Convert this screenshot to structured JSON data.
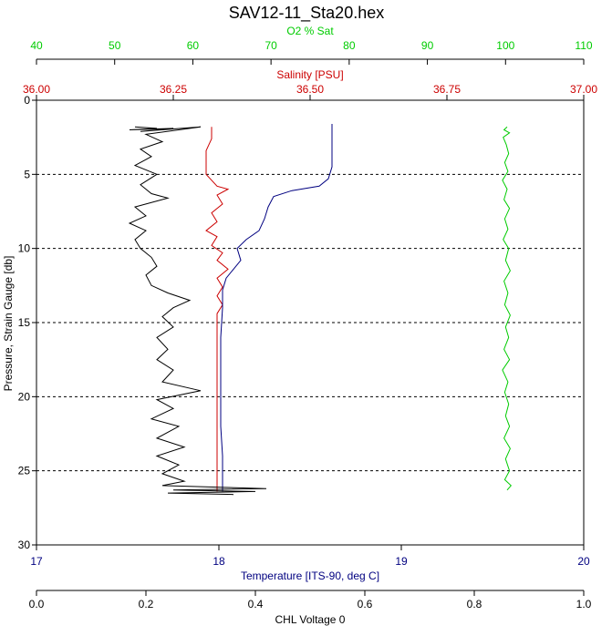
{
  "chart_data": {
    "type": "line",
    "title": "SAV12-11_Sta20.hex",
    "grid": {
      "horizontal_dashed": true,
      "vertical": false
    },
    "colors": {
      "oxygen": "#00cc00",
      "salinity": "#cc0000",
      "temperature": "#000080",
      "chl": "#000000",
      "axis": "#000000"
    },
    "axes": {
      "oxygen": {
        "label": "O2 % Sat",
        "range": [
          40,
          110
        ],
        "ticks": [
          "40",
          "50",
          "60",
          "70",
          "80",
          "90",
          "100",
          "110"
        ]
      },
      "salinity": {
        "label": "Salinity [PSU]",
        "range": [
          36.0,
          37.0
        ],
        "ticks": [
          "36.00",
          "36.25",
          "36.50",
          "36.75",
          "37.00"
        ]
      },
      "temperature": {
        "label": "Temperature [ITS-90, deg C]",
        "range": [
          17,
          20
        ],
        "ticks": [
          "17",
          "18",
          "19",
          "20"
        ]
      },
      "chl": {
        "label": "CHL Voltage 0",
        "range": [
          0.0,
          1.0
        ],
        "ticks": [
          "0.0",
          "0.2",
          "0.4",
          "0.6",
          "0.8",
          "1.0"
        ]
      },
      "pressure": {
        "label": "Pressure, Strain Gauge [db]",
        "range": [
          0,
          30
        ],
        "inverted": true,
        "ticks": [
          "0",
          "5",
          "10",
          "15",
          "20",
          "25",
          "30"
        ]
      }
    },
    "series": [
      {
        "name": "O2 % Sat",
        "axis": "oxygen",
        "points": [
          [
            100.2,
            1.8
          ],
          [
            99.8,
            2.0
          ],
          [
            100.5,
            2.2
          ],
          [
            99.7,
            2.5
          ],
          [
            100.1,
            3.0
          ],
          [
            100.4,
            3.6
          ],
          [
            99.9,
            4.2
          ],
          [
            100.3,
            4.8
          ],
          [
            99.6,
            5.4
          ],
          [
            100.2,
            6.0
          ],
          [
            99.8,
            6.7
          ],
          [
            100.5,
            7.3
          ],
          [
            99.9,
            8.0
          ],
          [
            100.3,
            8.7
          ],
          [
            99.7,
            9.4
          ],
          [
            100.4,
            10.0
          ],
          [
            100.0,
            10.8
          ],
          [
            100.6,
            11.5
          ],
          [
            99.8,
            12.2
          ],
          [
            100.3,
            13.0
          ],
          [
            99.9,
            13.8
          ],
          [
            100.6,
            14.5
          ],
          [
            100.0,
            15.3
          ],
          [
            100.4,
            16.0
          ],
          [
            99.8,
            16.8
          ],
          [
            100.5,
            17.5
          ],
          [
            99.6,
            18.2
          ],
          [
            100.3,
            19.0
          ],
          [
            99.9,
            19.7
          ],
          [
            100.4,
            20.5
          ],
          [
            100.0,
            21.3
          ],
          [
            100.5,
            22.0
          ],
          [
            99.8,
            22.8
          ],
          [
            100.6,
            23.5
          ],
          [
            100.0,
            24.2
          ],
          [
            100.5,
            25.0
          ],
          [
            99.9,
            25.6
          ],
          [
            100.7,
            26.0
          ],
          [
            100.2,
            26.3
          ]
        ]
      },
      {
        "name": "Salinity [PSU]",
        "axis": "salinity",
        "points": [
          [
            36.32,
            1.8
          ],
          [
            36.32,
            2.6
          ],
          [
            36.31,
            3.4
          ],
          [
            36.31,
            4.2
          ],
          [
            36.31,
            5.0
          ],
          [
            36.32,
            5.4
          ],
          [
            36.33,
            5.8
          ],
          [
            36.35,
            6.0
          ],
          [
            36.33,
            6.4
          ],
          [
            36.34,
            7.0
          ],
          [
            36.32,
            7.6
          ],
          [
            36.33,
            8.2
          ],
          [
            36.31,
            8.8
          ],
          [
            36.33,
            9.2
          ],
          [
            36.32,
            9.8
          ],
          [
            36.34,
            10.3
          ],
          [
            36.33,
            10.8
          ],
          [
            36.35,
            11.4
          ],
          [
            36.33,
            12.0
          ],
          [
            36.34,
            12.6
          ],
          [
            36.33,
            13.2
          ],
          [
            36.34,
            13.8
          ],
          [
            36.33,
            14.4
          ],
          [
            36.33,
            15.0
          ],
          [
            36.33,
            16.0
          ],
          [
            36.33,
            17.0
          ],
          [
            36.33,
            18.0
          ],
          [
            36.33,
            19.0
          ],
          [
            36.33,
            20.0
          ],
          [
            36.33,
            21.0
          ],
          [
            36.33,
            22.0
          ],
          [
            36.33,
            23.0
          ],
          [
            36.33,
            24.0
          ],
          [
            36.33,
            25.0
          ],
          [
            36.33,
            26.0
          ],
          [
            36.33,
            26.4
          ]
        ]
      },
      {
        "name": "Temperature [ITS-90, deg C]",
        "axis": "temperature",
        "points": [
          [
            18.62,
            1.6
          ],
          [
            18.62,
            3.0
          ],
          [
            18.62,
            4.5
          ],
          [
            18.6,
            5.3
          ],
          [
            18.55,
            5.8
          ],
          [
            18.4,
            6.1
          ],
          [
            18.3,
            6.5
          ],
          [
            18.27,
            7.2
          ],
          [
            18.25,
            8.0
          ],
          [
            18.22,
            8.8
          ],
          [
            18.15,
            9.4
          ],
          [
            18.1,
            10.0
          ],
          [
            18.12,
            10.8
          ],
          [
            18.08,
            11.4
          ],
          [
            18.04,
            12.0
          ],
          [
            18.02,
            12.8
          ],
          [
            18.02,
            14.0
          ],
          [
            18.01,
            16.0
          ],
          [
            18.01,
            18.0
          ],
          [
            18.01,
            20.0
          ],
          [
            18.01,
            22.0
          ],
          [
            18.02,
            24.0
          ],
          [
            18.02,
            26.0
          ],
          [
            18.02,
            26.4
          ]
        ]
      },
      {
        "name": "CHL Voltage 0",
        "axis": "chl",
        "points": [
          [
            0.18,
            1.8
          ],
          [
            0.22,
            1.9
          ],
          [
            0.17,
            2.0
          ],
          [
            0.25,
            1.9
          ],
          [
            0.19,
            2.1
          ],
          [
            0.3,
            1.8
          ],
          [
            0.2,
            2.3
          ],
          [
            0.23,
            2.8
          ],
          [
            0.19,
            3.3
          ],
          [
            0.21,
            3.8
          ],
          [
            0.18,
            4.4
          ],
          [
            0.22,
            5.0
          ],
          [
            0.19,
            5.7
          ],
          [
            0.21,
            6.3
          ],
          [
            0.24,
            6.6
          ],
          [
            0.18,
            7.2
          ],
          [
            0.2,
            7.8
          ],
          [
            0.17,
            8.3
          ],
          [
            0.2,
            8.8
          ],
          [
            0.18,
            9.4
          ],
          [
            0.19,
            10.0
          ],
          [
            0.21,
            10.6
          ],
          [
            0.22,
            11.2
          ],
          [
            0.2,
            11.8
          ],
          [
            0.21,
            12.5
          ],
          [
            0.24,
            13.0
          ],
          [
            0.28,
            13.5
          ],
          [
            0.25,
            14.0
          ],
          [
            0.23,
            14.6
          ],
          [
            0.25,
            15.3
          ],
          [
            0.22,
            16.0
          ],
          [
            0.24,
            16.8
          ],
          [
            0.22,
            17.5
          ],
          [
            0.25,
            18.2
          ],
          [
            0.23,
            19.0
          ],
          [
            0.3,
            19.6
          ],
          [
            0.22,
            20.2
          ],
          [
            0.25,
            20.8
          ],
          [
            0.21,
            21.5
          ],
          [
            0.26,
            22.0
          ],
          [
            0.22,
            22.8
          ],
          [
            0.27,
            23.4
          ],
          [
            0.22,
            24.0
          ],
          [
            0.26,
            24.6
          ],
          [
            0.23,
            25.2
          ],
          [
            0.27,
            25.7
          ],
          [
            0.23,
            26.0
          ],
          [
            0.42,
            26.2
          ],
          [
            0.25,
            26.3
          ],
          [
            0.4,
            26.4
          ],
          [
            0.24,
            26.5
          ],
          [
            0.36,
            26.6
          ]
        ]
      }
    ]
  }
}
